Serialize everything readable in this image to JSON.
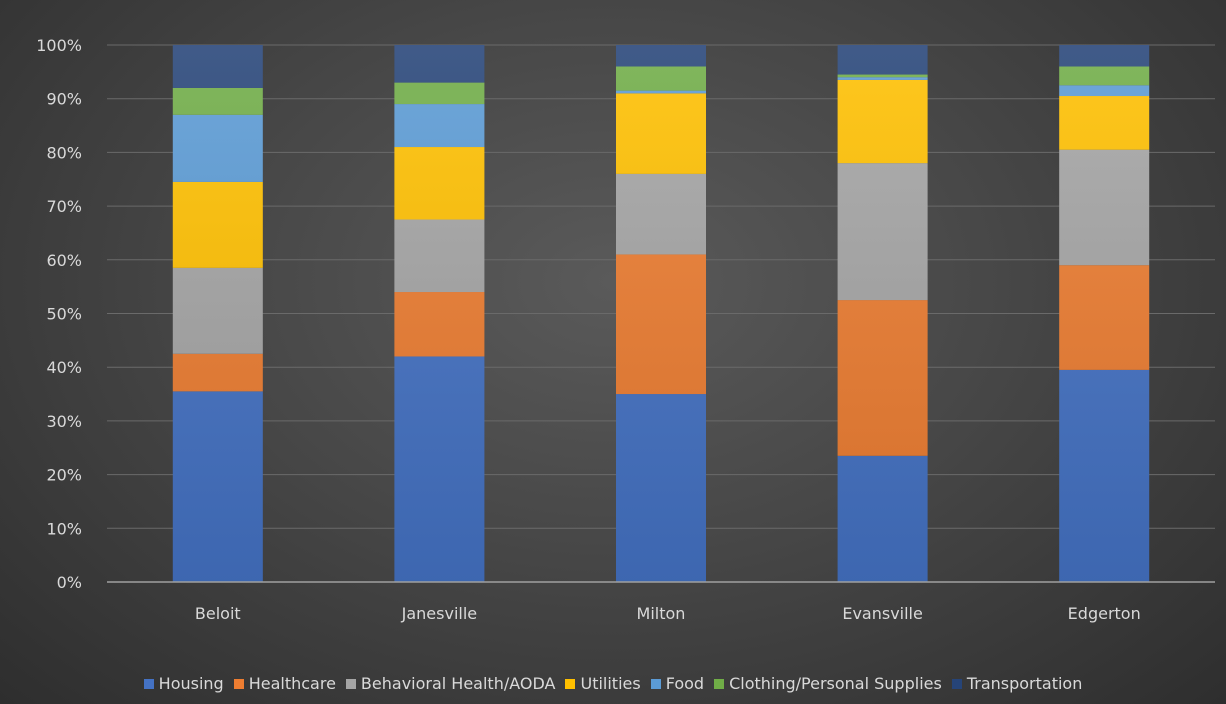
{
  "chart_data": {
    "type": "bar",
    "stacked": true,
    "percent": true,
    "categories": [
      "Beloit",
      "Janesville",
      "Milton",
      "Evansville",
      "Edgerton"
    ],
    "series": [
      {
        "name": "Housing",
        "color": "#4472c4",
        "values": [
          35.5,
          42.0,
          35.0,
          23.5,
          39.5
        ]
      },
      {
        "name": "Healthcare",
        "color": "#ed7d31",
        "values": [
          7.0,
          12.0,
          26.0,
          29.0,
          19.5
        ]
      },
      {
        "name": "Behavioral Health/AODA",
        "color": "#a5a5a5",
        "values": [
          16.0,
          13.5,
          15.0,
          25.5,
          21.5
        ]
      },
      {
        "name": "Utilities",
        "color": "#ffc000",
        "values": [
          16.0,
          13.5,
          15.0,
          15.5,
          10.0
        ]
      },
      {
        "name": "Food",
        "color": "#5b9bd5",
        "values": [
          12.5,
          8.0,
          0.5,
          0.5,
          2.0
        ]
      },
      {
        "name": "Clothing/Personal Supplies",
        "color": "#70ad47",
        "values": [
          5.0,
          4.0,
          4.5,
          0.5,
          3.5
        ]
      },
      {
        "name": "Transportation",
        "color": "#264478",
        "values": [
          8.0,
          7.0,
          4.0,
          5.5,
          4.0
        ]
      }
    ],
    "yticks": [
      "0%",
      "10%",
      "20%",
      "30%",
      "40%",
      "50%",
      "60%",
      "70%",
      "80%",
      "90%",
      "100%"
    ],
    "ylim": [
      0,
      100
    ],
    "grid": true,
    "legend_position": "bottom"
  }
}
